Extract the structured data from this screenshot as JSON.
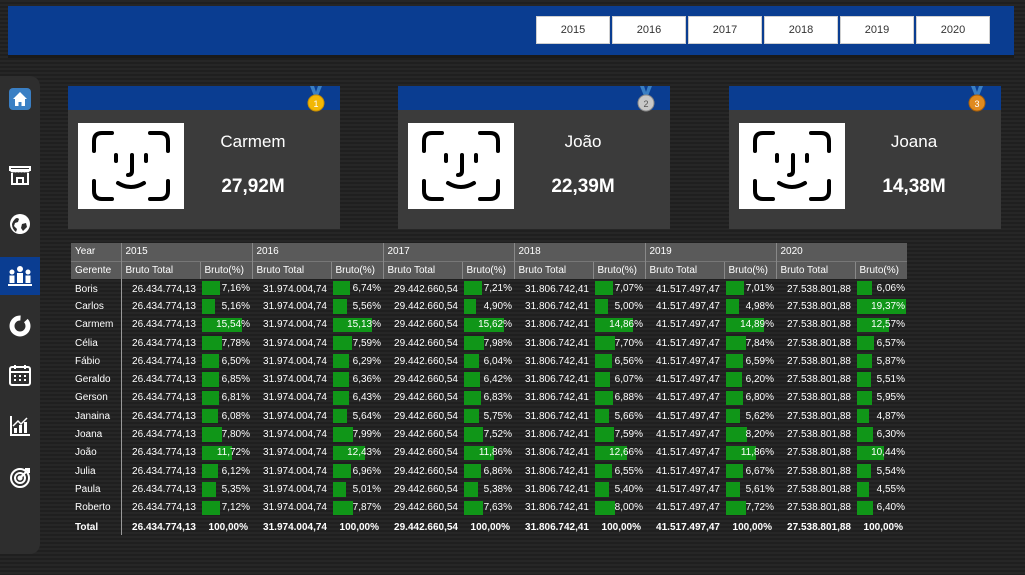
{
  "years_filter": [
    "2015",
    "2016",
    "2017",
    "2018",
    "2019",
    "2020"
  ],
  "sidebar": [
    "home-icon",
    "store-icon",
    "globe-icon",
    "team-icon",
    "donut-chart-icon",
    "calendar-icon",
    "bar-chart-icon",
    "target-icon"
  ],
  "top_cards": [
    {
      "rank": "1",
      "name": "Carmem",
      "value": "27,92M",
      "medal_color": "#f2b705"
    },
    {
      "rank": "2",
      "name": "João",
      "value": "22,39M",
      "medal_color": "#b8b8b8"
    },
    {
      "rank": "3",
      "name": "Joana",
      "value": "14,38M",
      "medal_color": "#e08a1e"
    }
  ],
  "table": {
    "header_year_label": "Year",
    "header_row_label": "Gerente",
    "col_total_label": "Bruto Total",
    "col_pct_label": "Bruto(%)",
    "years": [
      "2015",
      "2016",
      "2017",
      "2018",
      "2019",
      "2020"
    ],
    "year_totals": [
      "26.434.774,13",
      "31.974.004,74",
      "29.442.660,54",
      "31.806.742,41",
      "41.517.497,47",
      "27.538.801,88"
    ],
    "rows": [
      {
        "name": "Boris",
        "pct": [
          "7,16%",
          "6,74%",
          "7,21%",
          "7,07%",
          "7,01%",
          "6,06%"
        ]
      },
      {
        "name": "Carlos",
        "pct": [
          "5,16%",
          "5,56%",
          "4,90%",
          "5,00%",
          "4,98%",
          "19,37%"
        ]
      },
      {
        "name": "Carmem",
        "pct": [
          "15,54%",
          "15,13%",
          "15,62%",
          "14,86%",
          "14,89%",
          "12,57%"
        ]
      },
      {
        "name": "Célia",
        "pct": [
          "7,78%",
          "7,59%",
          "7,98%",
          "7,70%",
          "7,84%",
          "6,57%"
        ]
      },
      {
        "name": "Fábio",
        "pct": [
          "6,50%",
          "6,29%",
          "6,04%",
          "6,56%",
          "6,59%",
          "5,87%"
        ]
      },
      {
        "name": "Geraldo",
        "pct": [
          "6,85%",
          "6,36%",
          "6,42%",
          "6,07%",
          "6,20%",
          "5,51%"
        ]
      },
      {
        "name": "Gerson",
        "pct": [
          "6,81%",
          "6,43%",
          "6,83%",
          "6,88%",
          "6,80%",
          "5,95%"
        ]
      },
      {
        "name": "Janaina",
        "pct": [
          "6,08%",
          "5,64%",
          "5,75%",
          "5,66%",
          "5,62%",
          "4,87%"
        ]
      },
      {
        "name": "Joana",
        "pct": [
          "7,80%",
          "7,99%",
          "7,52%",
          "7,59%",
          "8,20%",
          "6,30%"
        ]
      },
      {
        "name": "João",
        "pct": [
          "11,72%",
          "12,43%",
          "11,86%",
          "12,66%",
          "11,86%",
          "10,44%"
        ]
      },
      {
        "name": "Julia",
        "pct": [
          "6,12%",
          "6,96%",
          "6,86%",
          "6,55%",
          "6,67%",
          "5,54%"
        ]
      },
      {
        "name": "Paula",
        "pct": [
          "5,35%",
          "5,01%",
          "5,38%",
          "5,40%",
          "5,61%",
          "4,55%"
        ]
      },
      {
        "name": "Roberto",
        "pct": [
          "7,12%",
          "7,87%",
          "7,63%",
          "8,00%",
          "7,72%",
          "6,40%"
        ]
      }
    ],
    "total_row": {
      "label": "Total",
      "values": [
        "26.434.774,13",
        "31.974.004,74",
        "29.442.660,54",
        "31.806.742,41",
        "41.517.497,47",
        "27.538.801,88"
      ],
      "pct": [
        "100,00%",
        "100,00%",
        "100,00%",
        "100,00%",
        "100,00%",
        "100,00%"
      ]
    },
    "bar_color": "#109618"
  }
}
